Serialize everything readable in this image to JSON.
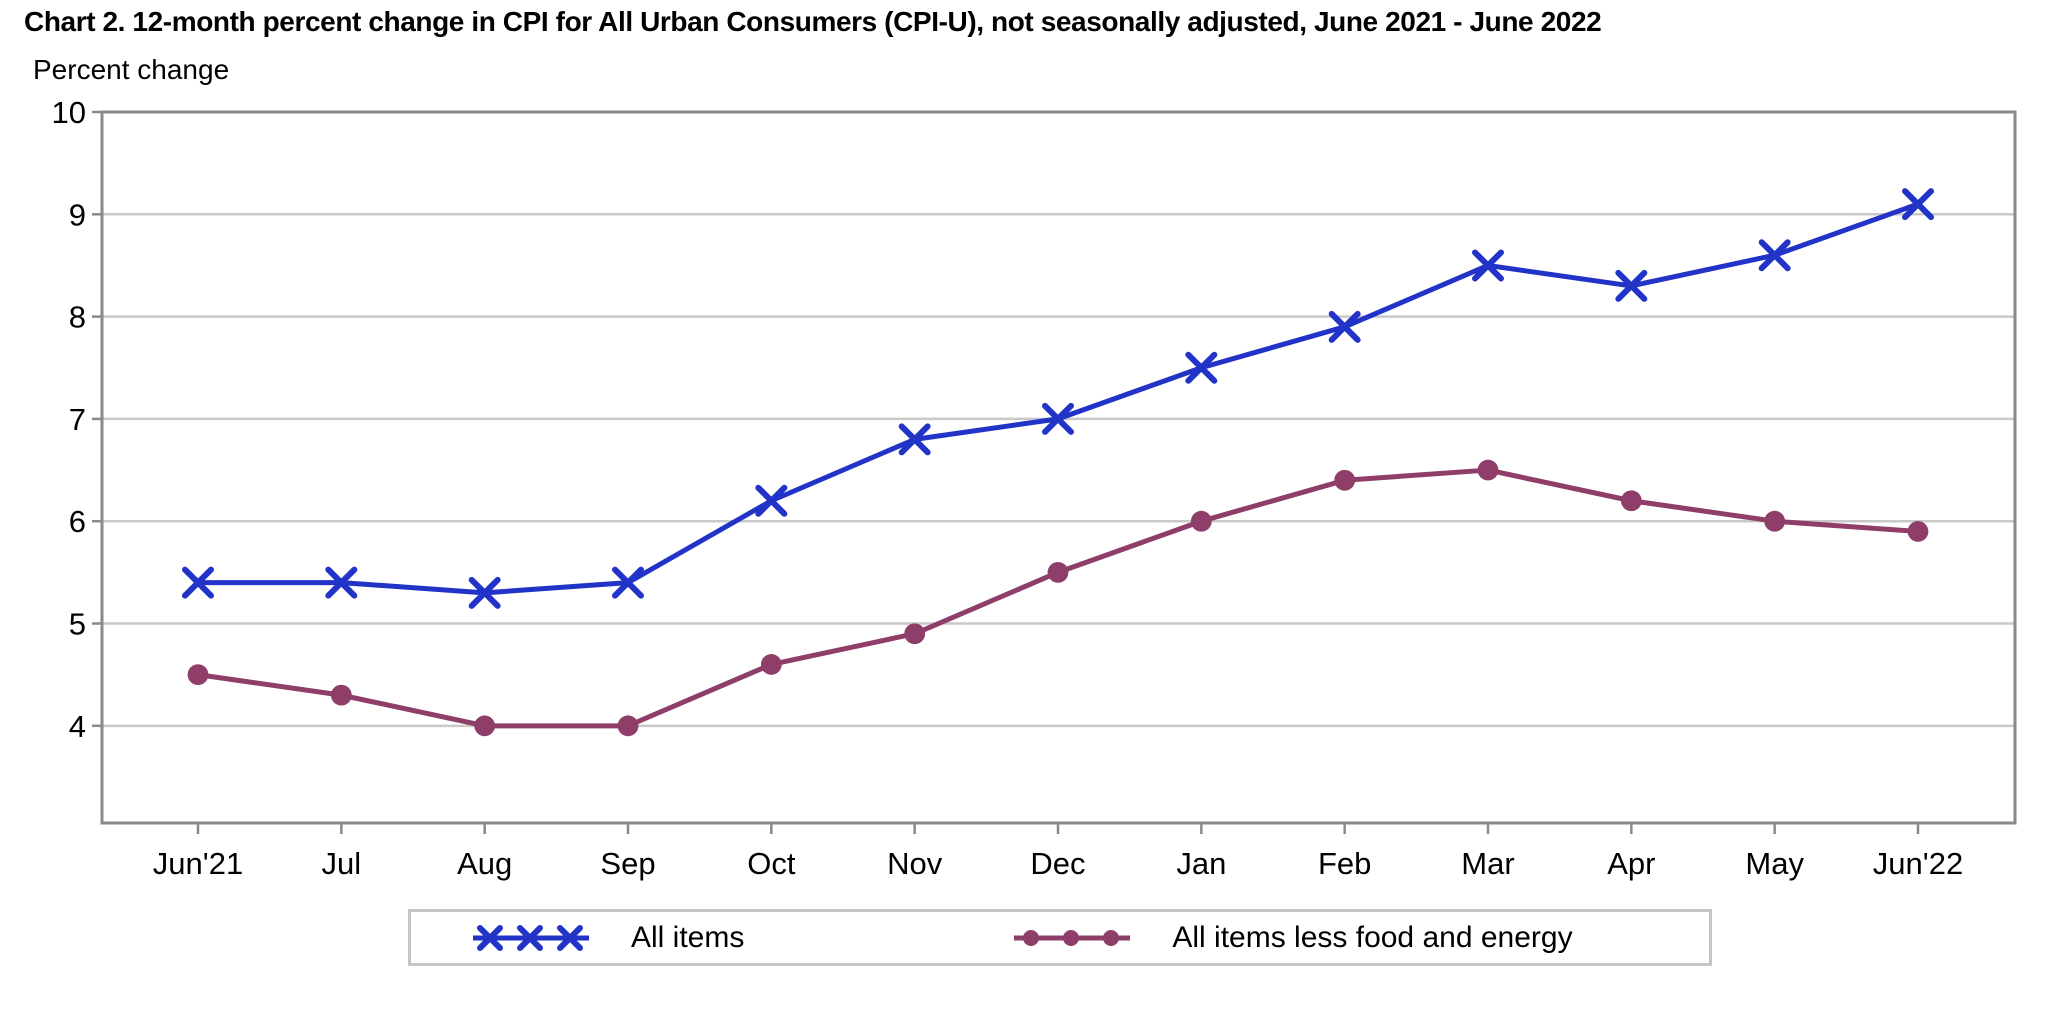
{
  "chart_data": {
    "type": "line",
    "title": "Chart 2. 12-month percent change in CPI for All Urban Consumers (CPI-U), not seasonally adjusted, June 2021 - June 2022",
    "ylabel": "Percent change",
    "xlabel": "",
    "categories": [
      "Jun'21",
      "Jul",
      "Aug",
      "Sep",
      "Oct",
      "Nov",
      "Dec",
      "Jan",
      "Feb",
      "Mar",
      "Apr",
      "May",
      "Jun'22"
    ],
    "series": [
      {
        "name": "All items",
        "marker": "x",
        "color": "#2233C8",
        "values": [
          5.4,
          5.4,
          5.3,
          5.4,
          6.2,
          6.8,
          7.0,
          7.5,
          7.9,
          8.5,
          8.3,
          8.6,
          9.1
        ]
      },
      {
        "name": "All items less food and energy",
        "marker": "circle",
        "color": "#8E3E68",
        "values": [
          4.5,
          4.3,
          4.0,
          4.0,
          4.6,
          4.9,
          5.5,
          6.0,
          6.4,
          6.5,
          6.2,
          6.0,
          5.9
        ]
      }
    ],
    "ylim": [
      3.05,
      10
    ],
    "y_ticks": [
      4,
      5,
      6,
      7,
      8,
      9,
      10
    ],
    "grid": "horizontal-only",
    "legend_position": "bottom",
    "colors": {
      "axis_border": "#8A8A8A",
      "gridline": "#C9C9C9",
      "tick": "#8A8A8A",
      "text": "#000000",
      "background": "#FFFFFF"
    }
  }
}
